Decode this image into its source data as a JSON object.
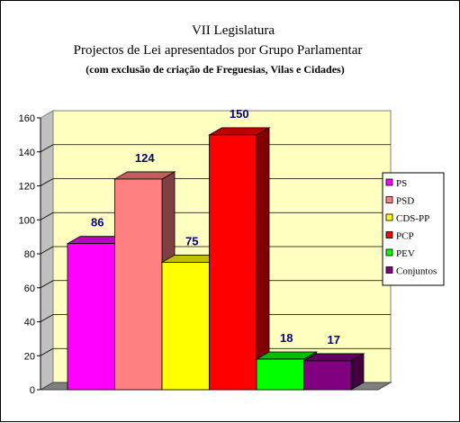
{
  "chart_data": {
    "type": "bar",
    "title": "VII Legislatura",
    "subtitle": "Projectos de Lei apresentados por Grupo Parlamentar",
    "note": "(com exclusão de criação de Freguesias, Vilas e Cidades)",
    "categories": [
      "PS",
      "PSD",
      "CDS-PP",
      "PCP",
      "PEV",
      "Conjuntos"
    ],
    "values": [
      86,
      124,
      75,
      150,
      18,
      17
    ],
    "colors": [
      "#ff00ff",
      "#ff8080",
      "#ffff00",
      "#ff0000",
      "#00ff00",
      "#800080"
    ],
    "ylim": [
      0,
      160
    ],
    "yticks": [
      0,
      20,
      40,
      60,
      80,
      100,
      120,
      140,
      160
    ],
    "grid": true,
    "wall_color": "#ffffc0",
    "legend": "right",
    "three_d": true
  }
}
